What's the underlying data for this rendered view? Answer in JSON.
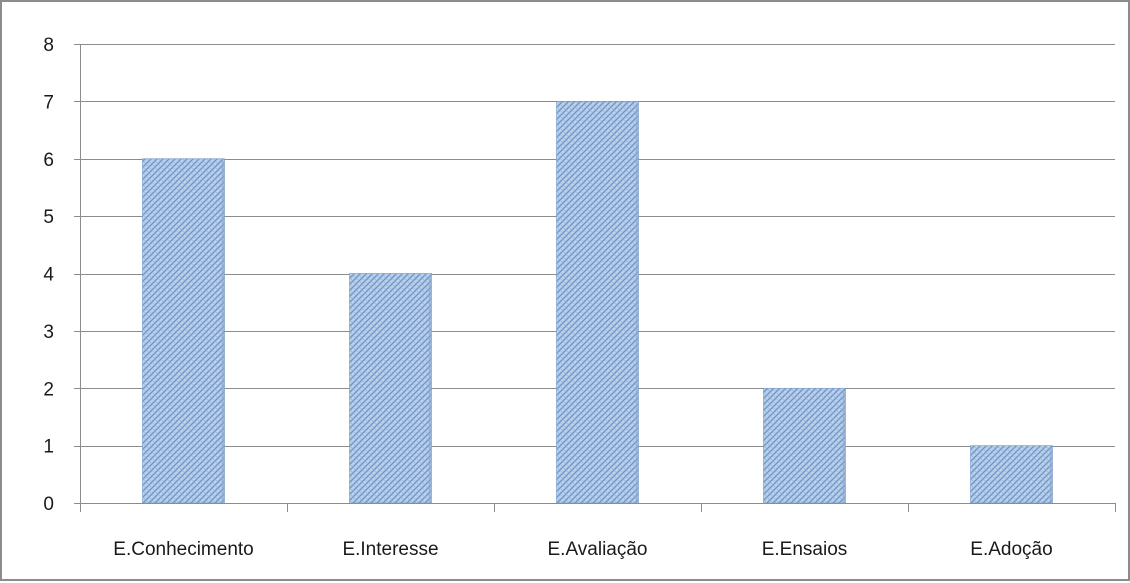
{
  "chart_data": {
    "type": "bar",
    "title": "",
    "xlabel": "",
    "ylabel": "",
    "categories": [
      "E.Conhecimento",
      "E.Interesse",
      "E.Avaliação",
      "E.Ensaios",
      "E.Adoção"
    ],
    "values": [
      6,
      4,
      7,
      2,
      1
    ],
    "ylim": [
      0,
      8
    ],
    "yticks": [
      0,
      1,
      2,
      3,
      4,
      5,
      6,
      7,
      8
    ],
    "grid": true,
    "legend": "none",
    "bar_color": "#a8c2e4",
    "bar_pattern_color": "#6f95c8",
    "grid_color": "#8c8c8c"
  }
}
